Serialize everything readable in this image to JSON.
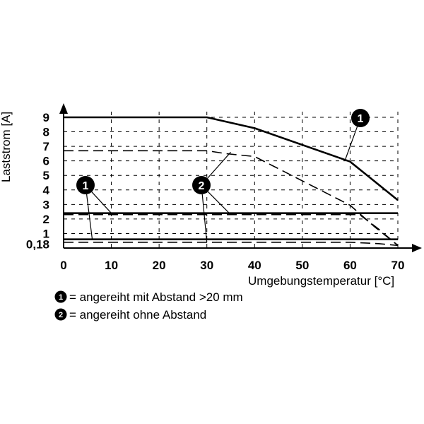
{
  "chart_data": {
    "type": "line",
    "title": "",
    "xlabel": "Umgebungstemperatur [°C]",
    "ylabel": "Laststrom [A]",
    "xlim": [
      0,
      70
    ],
    "ylim": [
      0,
      9
    ],
    "x_ticks": [
      "0",
      "10",
      "20",
      "30",
      "40",
      "50",
      "60",
      "70"
    ],
    "y_ticks": [
      "9",
      "8",
      "7",
      "6",
      "5",
      "4",
      "3",
      "2",
      "1",
      "0,18"
    ],
    "series": [
      {
        "name": "",
        "style": "solid",
        "label": "1",
        "points": [
          [
            0,
            9
          ],
          [
            30,
            9
          ],
          [
            40,
            8.25
          ],
          [
            60,
            5.95
          ],
          [
            70,
            3.3
          ]
        ]
      },
      {
        "name": "",
        "style": "dashed",
        "label": "2",
        "points": [
          [
            0,
            6.7
          ],
          [
            30,
            6.7
          ],
          [
            34,
            6.5
          ],
          [
            40,
            6.3
          ],
          [
            60,
            2.95
          ],
          [
            65,
            1.5
          ],
          [
            70,
            0.18
          ]
        ]
      },
      {
        "name": "",
        "style": "solid",
        "label": "1",
        "points": [
          [
            0,
            2.4
          ],
          [
            70,
            2.4
          ]
        ]
      },
      {
        "name": "",
        "style": "dashed",
        "label": "2",
        "points": [
          [
            0,
            2.3
          ],
          [
            62,
            2.3
          ],
          [
            66,
            1.3
          ],
          [
            70,
            0.18
          ]
        ]
      },
      {
        "name": "",
        "style": "solid",
        "label": "1",
        "points": [
          [
            0,
            0.6
          ],
          [
            70,
            0.6
          ]
        ]
      },
      {
        "name": "",
        "style": "dashed",
        "label": "2",
        "points": [
          [
            0,
            0.4
          ],
          [
            60,
            0.4
          ],
          [
            66,
            0.3
          ],
          [
            70,
            0.18
          ]
        ]
      }
    ],
    "callouts": [
      {
        "label": "1",
        "anchor": [
          59,
          6.1
        ]
      },
      {
        "label": "2",
        "anchor": [
          35,
          6.6
        ]
      },
      {
        "label": "1",
        "anchor": [
          10,
          2.4
        ]
      },
      {
        "label": "2",
        "anchor": [
          35,
          2.3
        ]
      },
      {
        "label": "1",
        "anchor": [
          6,
          0.6
        ]
      },
      {
        "label": "2",
        "anchor": [
          30,
          0.4
        ]
      }
    ],
    "legend": [
      {
        "label": "1",
        "text": "= angereiht mit Abstand >20 mm"
      },
      {
        "label": "2",
        "text": "= angereiht ohne Abstand"
      }
    ]
  }
}
